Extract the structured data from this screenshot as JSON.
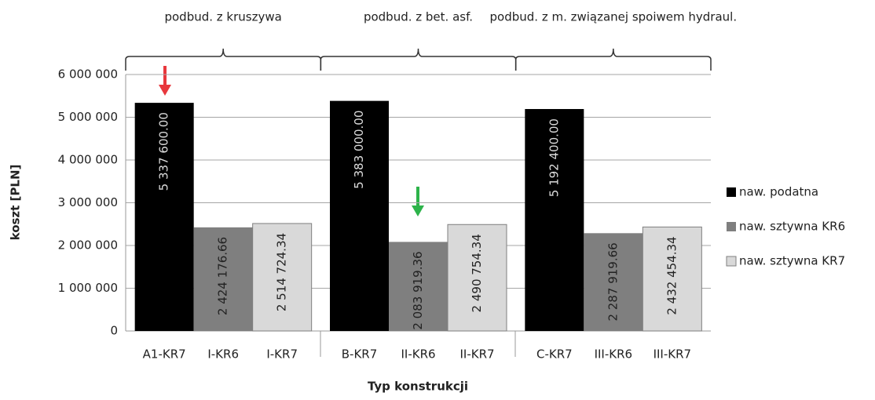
{
  "chart_data": {
    "type": "bar",
    "groups": [
      "podbud. z kruszywa",
      "podbud. z bet. asf.",
      "podbud. z m. związanej spoiwem hydraul."
    ],
    "categories": [
      "A1-KR7",
      "I-KR6",
      "I-KR7",
      "B-KR7",
      "II-KR6",
      "II-KR7",
      "C-KR7",
      "III-KR6",
      "III-KR7"
    ],
    "series": [
      {
        "name": "naw. podatna",
        "color": "#000000",
        "values": [
          5337600,
          null,
          null,
          5383000,
          null,
          null,
          5192400,
          null,
          null
        ],
        "value_labels": [
          "5 337 600.00",
          null,
          null,
          "5 383 000.00",
          null,
          null,
          "5 192 400.00",
          null,
          null
        ]
      },
      {
        "name": "naw. sztywna KR6",
        "color": "#7f7f7f",
        "values": [
          null,
          2424176.66,
          null,
          null,
          2083919.36,
          null,
          null,
          2287919.66,
          null
        ],
        "value_labels": [
          null,
          "2 424 176.66",
          null,
          null,
          "2 083 919.36",
          null,
          null,
          "2 287 919.66",
          null
        ]
      },
      {
        "name": "naw. sztywna KR7",
        "color": "#d9d9d9",
        "values": [
          null,
          null,
          2514724.34,
          null,
          null,
          2490754.34,
          null,
          null,
          2432454.34
        ],
        "value_labels": [
          null,
          null,
          "2 514 724.34",
          null,
          null,
          "2 490 754.34",
          null,
          null,
          "2 432 454.34"
        ]
      }
    ],
    "x_label": "Typ konstrukcji",
    "y_label": "koszt [PLN]",
    "ylim": [
      0,
      6000000
    ],
    "yticks": [
      0,
      {
        "value": 1000000,
        "label": "1 000 000"
      },
      {
        "value": 2000000,
        "label": "2 000 000"
      },
      {
        "value": 3000000,
        "label": "3 000 000"
      },
      {
        "value": 4000000,
        "label": "4 000 000"
      },
      {
        "value": 5000000,
        "label": "5 000 000"
      },
      {
        "value": 6000000,
        "label": "6 000 000"
      }
    ],
    "grid": true,
    "legend": "right"
  }
}
